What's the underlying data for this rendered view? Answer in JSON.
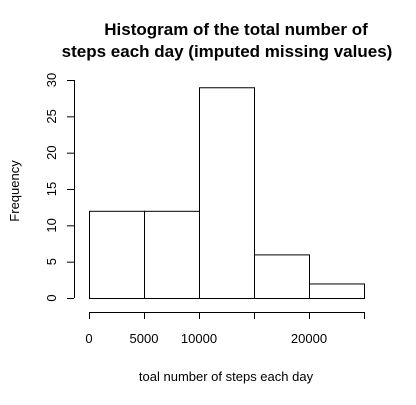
{
  "chart_data": {
    "type": "bar",
    "title_line1": "Histogram of the total number of",
    "title_line2": "steps each day (imputed missing values)",
    "xlabel": "toal number of steps each day",
    "ylabel": "Frequency",
    "bins": [
      {
        "start": 0,
        "end": 5000,
        "count": 12
      },
      {
        "start": 5000,
        "end": 10000,
        "count": 12
      },
      {
        "start": 10000,
        "end": 15000,
        "count": 29
      },
      {
        "start": 15000,
        "end": 20000,
        "count": 6
      },
      {
        "start": 20000,
        "end": 25000,
        "count": 2
      }
    ],
    "xlim": [
      0,
      25000
    ],
    "ylim": [
      0,
      30
    ],
    "x_axis_ticks": [
      0,
      5000,
      10000,
      15000,
      20000,
      25000
    ],
    "x_tick_labels": [
      {
        "value": 0,
        "label": "0"
      },
      {
        "value": 5000,
        "label": "5000"
      },
      {
        "value": 10000,
        "label": "10000"
      },
      {
        "value": 20000,
        "label": "20000"
      }
    ],
    "y_ticks": [
      0,
      5,
      10,
      15,
      20,
      25,
      30
    ],
    "y_tick_labels": [
      "0",
      "5",
      "10",
      "15",
      "20",
      "25",
      "30"
    ],
    "grid": false,
    "legend": "none"
  }
}
